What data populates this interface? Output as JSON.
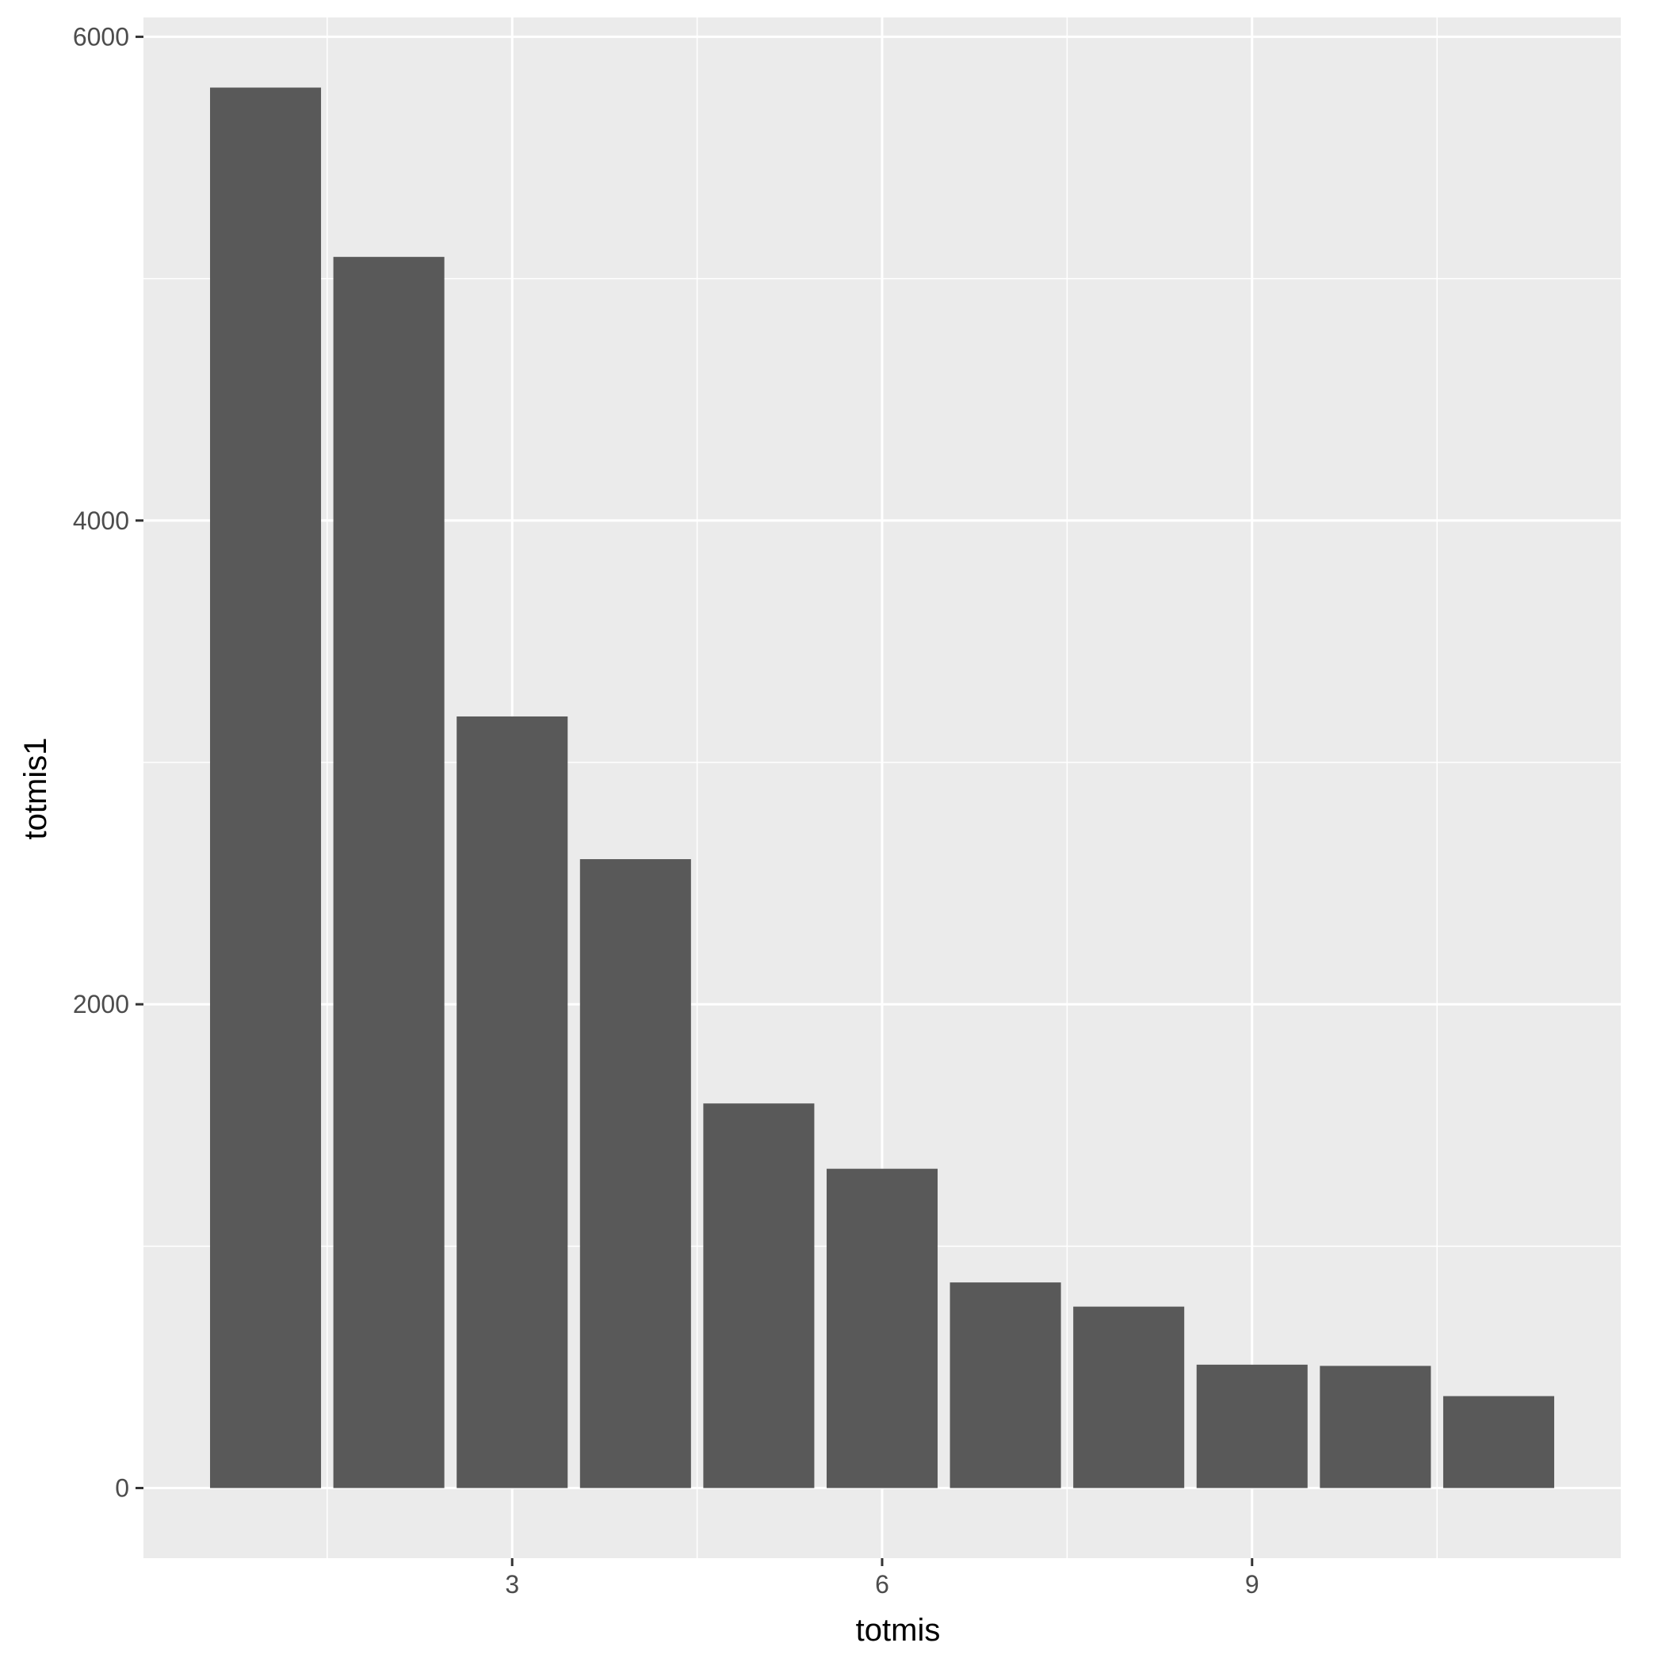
{
  "chart_data": {
    "type": "bar",
    "xlabel": "totmis",
    "ylabel": "totmis1",
    "x": [
      1,
      2,
      3,
      4,
      5,
      6,
      7,
      8,
      9,
      10,
      11
    ],
    "values": [
      5790,
      5090,
      3190,
      2600,
      1590,
      1320,
      850,
      750,
      510,
      505,
      380
    ],
    "xlim": [
      0.01,
      11.99
    ],
    "ylim": [
      -290,
      6080
    ],
    "x_ticks": [
      3,
      6,
      9
    ],
    "x_tick_labels": [
      "3",
      "6",
      "9"
    ],
    "y_ticks": [
      0,
      2000,
      4000,
      6000
    ],
    "y_tick_labels": [
      "0",
      "2000",
      "4000",
      "6000"
    ],
    "grid": true,
    "legend": "none",
    "colors": {
      "bar": "#595959",
      "panel": "#ebebeb",
      "grid": "#ffffff"
    }
  }
}
